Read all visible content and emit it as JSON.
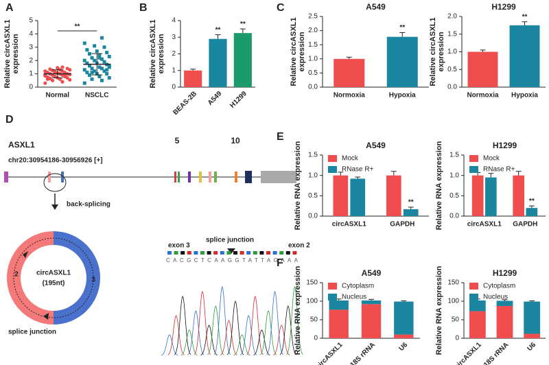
{
  "chart_data": [
    {
      "type": "dot",
      "y_label": [
        "Relative circASXL1",
        "expression"
      ],
      "categories": [
        "Normal",
        "NSCLC"
      ],
      "values": [
        [
          0.3,
          0.4,
          0.5,
          0.55,
          0.6,
          0.65,
          0.7,
          0.7,
          0.75,
          0.8,
          0.8,
          0.85,
          0.9,
          0.9,
          0.95,
          1.0,
          1.0,
          1.0,
          1.05,
          1.1,
          1.1,
          1.15,
          1.2,
          1.2,
          1.25,
          1.3,
          1.3,
          1.35,
          1.4,
          1.45,
          0.6,
          0.85,
          1.1,
          0.95,
          1.5
        ],
        [
          0.3,
          0.5,
          0.6,
          0.7,
          0.8,
          0.9,
          1.0,
          1.0,
          1.1,
          1.2,
          1.2,
          1.3,
          1.4,
          1.4,
          1.5,
          1.5,
          1.6,
          1.7,
          1.8,
          1.8,
          1.9,
          2.0,
          2.0,
          2.1,
          2.2,
          2.3,
          2.4,
          2.5,
          2.6,
          2.7,
          2.8,
          3.0,
          3.1,
          3.3,
          3.7,
          1.1,
          1.6,
          2.2,
          0.9,
          1.3
        ]
      ],
      "means": [
        1.0,
        1.72
      ],
      "sd": [
        0.3,
        0.8
      ],
      "colors": [
        "#f04e4e",
        "#1a86a0"
      ],
      "markers": [
        "circle",
        "square"
      ],
      "significance": "**",
      "ylim": [
        0,
        5
      ],
      "yticks": [
        0,
        1,
        2,
        3,
        4,
        5
      ]
    },
    {
      "type": "bar",
      "y_label": [
        "Relative circASXL1",
        "expression"
      ],
      "categories": [
        "BEAS-2B",
        "A549",
        "H1299"
      ],
      "values": [
        1.0,
        2.9,
        3.25
      ],
      "errors": [
        0.08,
        0.25,
        0.25
      ],
      "colors": [
        "#f04e4e",
        "#1a86a0",
        "#1b9a6b"
      ],
      "significance": [
        null,
        "**",
        "**"
      ],
      "ylim": [
        0,
        4
      ],
      "yticks": [
        0,
        1,
        2,
        3,
        4
      ]
    },
    {
      "type": "bar",
      "title": "A549",
      "y_label": [
        "Relative circASXL1",
        "expression"
      ],
      "categories": [
        "Normoxia",
        "Hypoxia"
      ],
      "values": [
        1.0,
        1.78
      ],
      "errors": [
        0.06,
        0.15
      ],
      "colors": [
        "#f04e4e",
        "#1a86a0"
      ],
      "significance": [
        null,
        "**"
      ],
      "ylim": [
        0,
        2.5
      ],
      "yticks": [
        {
          "value": 0,
          "label": "0.0"
        },
        0.5,
        {
          "value": 1,
          "label": "1.0"
        },
        1.5,
        {
          "value": 2,
          "label": "2.0"
        },
        2.5
      ]
    },
    {
      "type": "bar",
      "title": "H1299",
      "y_label": [
        "Relative circASXL1",
        "expression"
      ],
      "categories": [
        "Normoxia",
        "Hypoxia"
      ],
      "values": [
        1.0,
        1.75
      ],
      "errors": [
        0.05,
        0.1
      ],
      "colors": [
        "#f04e4e",
        "#1a86a0"
      ],
      "significance": [
        null,
        "**"
      ],
      "ylim": [
        0,
        2.0
      ],
      "yticks": [
        {
          "value": 0,
          "label": "0.0"
        },
        0.5,
        {
          "value": 1,
          "label": "1.0"
        },
        1.5,
        {
          "value": 2,
          "label": "2.0"
        }
      ]
    },
    {
      "type": "grouped_bar",
      "title": "A549",
      "y_label": "Relative RNA expression",
      "categories": [
        "circASXL1",
        "GAPDH"
      ],
      "series": [
        {
          "name": "Mock",
          "color": "#f04e4e",
          "values": [
            1.0,
            1.0
          ],
          "errors": [
            0.08,
            0.1
          ],
          "significance": [
            null,
            null
          ]
        },
        {
          "name": "RNase R+",
          "color": "#1a86a0",
          "values": [
            0.92,
            0.17
          ],
          "errors": [
            0.04,
            0.05
          ],
          "significance": [
            null,
            "**"
          ]
        }
      ],
      "ylim": [
        0,
        1.5
      ],
      "yticks": [
        {
          "value": 0,
          "label": "0.0"
        },
        0.5,
        {
          "value": 1,
          "label": "1.0"
        },
        1.5
      ]
    },
    {
      "type": "grouped_bar",
      "title": "H1299",
      "y_label": "Relative RNA expression",
      "categories": [
        "circASXL1",
        "GAPDH"
      ],
      "series": [
        {
          "name": "Mock",
          "color": "#f04e4e",
          "values": [
            1.0,
            1.0
          ],
          "errors": [
            0.07,
            0.1
          ],
          "significance": [
            null,
            null
          ]
        },
        {
          "name": "RNase R+",
          "color": "#1a86a0",
          "values": [
            0.95,
            0.2
          ],
          "errors": [
            0.1,
            0.05
          ],
          "significance": [
            null,
            "**"
          ]
        }
      ],
      "ylim": [
        0,
        1.5
      ],
      "yticks": [
        {
          "value": 0,
          "label": "0.0"
        },
        0.5,
        {
          "value": 1,
          "label": "1.0"
        },
        1.5
      ]
    },
    {
      "type": "stacked_bar",
      "title": "A549",
      "y_label": "Relative RNA expression",
      "categories": [
        "circASXL1",
        "18S rRNA",
        "U6"
      ],
      "series": [
        {
          "name": "Cytoplasm",
          "color": "#f04e4e",
          "values": [
            77,
            92,
            10
          ],
          "errors": [
            5,
            2,
            2
          ]
        },
        {
          "name": "Nucleus",
          "color": "#1a86a0",
          "values": [
            25,
            10,
            89
          ],
          "errors": [
            4,
            3,
            2
          ]
        }
      ],
      "ylim": [
        0,
        150
      ],
      "yticks": [
        0,
        50,
        100,
        150
      ]
    },
    {
      "type": "stacked_bar",
      "title": "H1299",
      "y_label": "Relative RNA expression",
      "categories": [
        "circASXL1",
        "18S rRNA",
        "U6"
      ],
      "series": [
        {
          "name": "Cytoplasm",
          "color": "#f04e4e",
          "values": [
            73,
            87,
            12
          ],
          "errors": [
            4,
            3,
            2
          ]
        },
        {
          "name": "Nucleus",
          "color": "#1a86a0",
          "values": [
            29,
            14,
            87
          ],
          "errors": [
            4,
            3,
            2
          ]
        }
      ],
      "ylim": [
        0,
        150
      ],
      "yticks": [
        0,
        50,
        100,
        150
      ]
    }
  ],
  "panel_labels": [
    "A",
    "B",
    "C",
    "D",
    "E",
    "F"
  ],
  "diagram": {
    "gene": "ASXL1",
    "locus": "chr20:30954186-30956926 [+]",
    "exon_labels": [
      "5",
      "10"
    ],
    "back_splicing": "back-splicing",
    "circ_name": "circASXL1",
    "circ_length": "(195nt)",
    "ring_labels": [
      "2",
      "3"
    ],
    "junction_label": "splice junction",
    "chromatogram": {
      "left": "exon 3",
      "center": "splice junction",
      "right": "exon 2",
      "sequence": "CACGCTCAAGGTATTAGAAA"
    }
  }
}
